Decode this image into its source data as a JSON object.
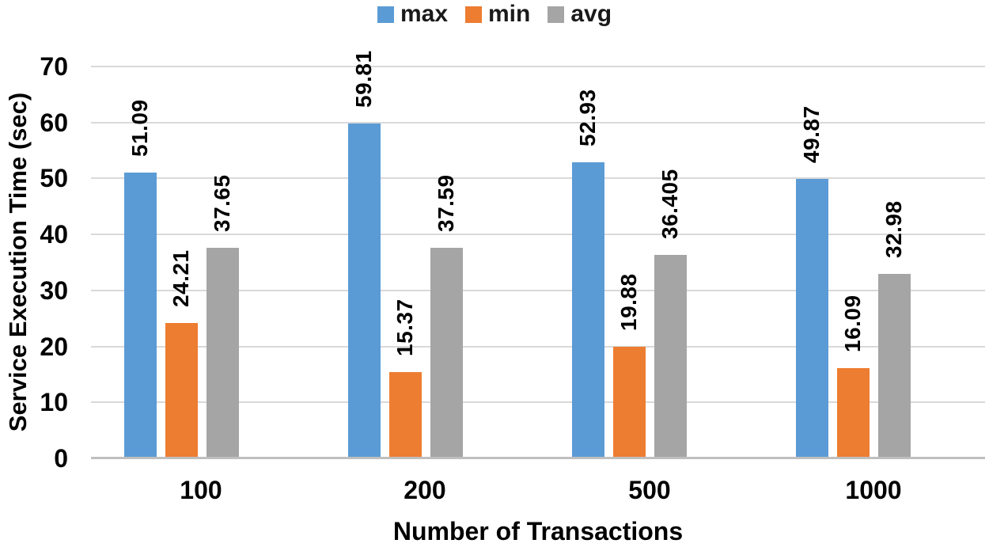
{
  "chart_data": {
    "type": "bar",
    "categories": [
      "100",
      "200",
      "500",
      "1000"
    ],
    "series": [
      {
        "name": "max",
        "color": "#5B9BD5",
        "values": [
          51.09,
          59.81,
          52.93,
          49.87
        ]
      },
      {
        "name": "min",
        "color": "#ED7D31",
        "values": [
          24.21,
          15.37,
          19.88,
          16.09
        ]
      },
      {
        "name": "avg",
        "color": "#A5A5A5",
        "values": [
          37.65,
          37.59,
          36.405,
          32.98
        ]
      }
    ],
    "data_labels": [
      [
        "51.09",
        "24.21",
        "37.65"
      ],
      [
        "59.81",
        "15.37",
        "37.59"
      ],
      [
        "52.93",
        "19.88",
        "36.405"
      ],
      [
        "49.87",
        "16.09",
        "32.98"
      ]
    ],
    "xlabel": "Number of Transactions",
    "ylabel": "Service Execution Time (sec)",
    "ylim": [
      0,
      70
    ],
    "yticks": [
      "0",
      "10",
      "20",
      "30",
      "40",
      "50",
      "60",
      "70"
    ],
    "grid": true,
    "legend_position": "top",
    "colors": {
      "max": "#5B9BD5",
      "min": "#ED7D31",
      "avg": "#A5A5A5",
      "gridline": "#D9D9D9",
      "axis_line": "#BFBFBF",
      "text": "#000000"
    }
  }
}
